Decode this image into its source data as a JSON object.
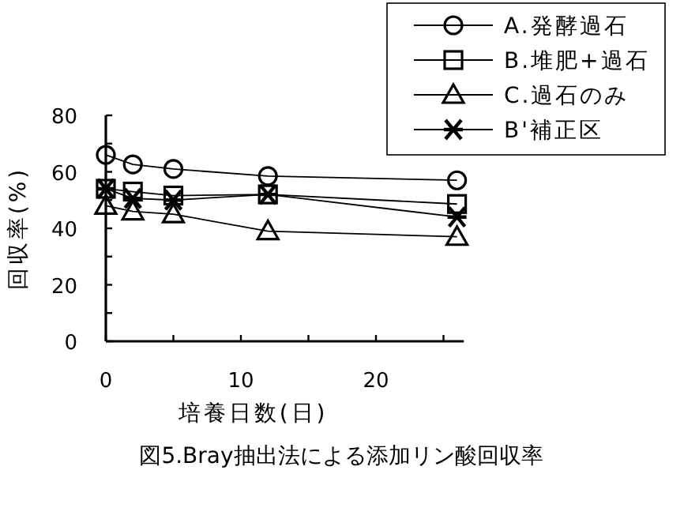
{
  "chart_data": {
    "type": "line",
    "xlabel": "培養日数(日)",
    "ylabel": "回収率(%)",
    "annotations": [
      "図5.Bray抽出法による添加リン酸回収率"
    ],
    "x": [
      0,
      2,
      5,
      12,
      26
    ],
    "xlim": [
      0,
      26.5
    ],
    "xticks": [
      0,
      {
        "value": 5,
        "label": null
      },
      10,
      {
        "value": 15,
        "label": null
      },
      20,
      {
        "value": 25,
        "label": null
      }
    ],
    "ylim": [
      0,
      80
    ],
    "yticks": [
      0,
      {
        "value": 10,
        "label": null
      },
      20,
      {
        "value": 30,
        "label": null
      },
      40,
      {
        "value": 50,
        "label": null
      },
      60,
      {
        "value": 70,
        "label": null
      },
      80
    ],
    "legend": "top right",
    "grid": false,
    "series": [
      {
        "name": "A.発酵過石",
        "color": "#000000",
        "marker": "circle",
        "values": [
          66,
          62.6,
          61,
          58.5,
          57
        ]
      },
      {
        "name": "B.堆肥+過石",
        "color": "#000000",
        "marker": "square",
        "values": [
          54,
          53,
          51.6,
          52,
          48.6
        ]
      },
      {
        "name": "C.過石のみ",
        "color": "#000000",
        "marker": "triangle",
        "values": [
          48,
          46,
          45,
          39,
          37
        ]
      },
      {
        "name": "B'補正区",
        "color": "#000000",
        "marker": "cross",
        "values": [
          54,
          50.6,
          50,
          52,
          44
        ]
      }
    ]
  }
}
